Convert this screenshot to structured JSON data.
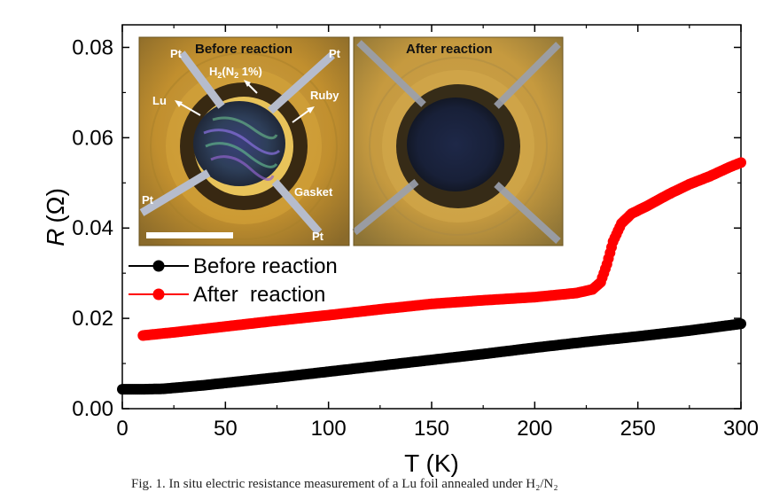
{
  "chart_data": {
    "type": "scatter",
    "title": "",
    "xlabel": "T (K)",
    "ylabel_symbol": "R",
    "ylabel_unit": "(Ω)",
    "xlim": [
      0,
      300
    ],
    "ylim": [
      0,
      0.085
    ],
    "x_ticks": [
      0,
      50,
      100,
      150,
      200,
      250,
      300
    ],
    "x_tick_labels": [
      "0",
      "50",
      "100",
      "150",
      "200",
      "250",
      "300"
    ],
    "y_ticks": [
      0,
      0.02,
      0.04,
      0.06,
      0.08
    ],
    "y_tick_labels": [
      "0.00",
      "0.02",
      "0.04",
      "0.06",
      "0.08"
    ],
    "grid": false,
    "legend_position": "middle-left",
    "series": [
      {
        "name": "Before reaction",
        "color": "#000000",
        "points": [
          [
            0,
            0.0043
          ],
          [
            10,
            0.0043
          ],
          [
            20,
            0.0044
          ],
          [
            30,
            0.0048
          ],
          [
            40,
            0.0052
          ],
          [
            50,
            0.0057
          ],
          [
            75,
            0.0069
          ],
          [
            100,
            0.0082
          ],
          [
            125,
            0.0095
          ],
          [
            150,
            0.0108
          ],
          [
            175,
            0.0121
          ],
          [
            200,
            0.0135
          ],
          [
            225,
            0.0148
          ],
          [
            250,
            0.016
          ],
          [
            275,
            0.0173
          ],
          [
            300,
            0.0188
          ]
        ]
      },
      {
        "name": "After  reaction",
        "color": "#ff0000",
        "points": [
          [
            10,
            0.0162
          ],
          [
            25,
            0.0169
          ],
          [
            50,
            0.0182
          ],
          [
            75,
            0.0195
          ],
          [
            100,
            0.0207
          ],
          [
            125,
            0.022
          ],
          [
            150,
            0.0232
          ],
          [
            175,
            0.024
          ],
          [
            200,
            0.0247
          ],
          [
            220,
            0.0256
          ],
          [
            228,
            0.0264
          ],
          [
            232,
            0.028
          ],
          [
            235,
            0.032
          ],
          [
            238,
            0.037
          ],
          [
            242,
            0.041
          ],
          [
            247,
            0.0432
          ],
          [
            255,
            0.045
          ],
          [
            265,
            0.0475
          ],
          [
            275,
            0.0497
          ],
          [
            285,
            0.0515
          ],
          [
            295,
            0.0536
          ],
          [
            300,
            0.0545
          ]
        ]
      }
    ],
    "insets": [
      {
        "title": "Before reaction",
        "labels": [
          "Pt",
          "Pt",
          "Pt",
          "Pt",
          "Lu",
          "Ruby",
          "Gasket"
        ],
        "gas_label": "H",
        "gas_sub1": "2",
        "gas_mid": "(N",
        "gas_sub2": "2",
        "gas_end": " 1%)"
      },
      {
        "title": "After reaction"
      }
    ]
  },
  "caption": "Fig. 1. In situ electric resistance measurement of a Lu foil annealed under H₂/N₂"
}
